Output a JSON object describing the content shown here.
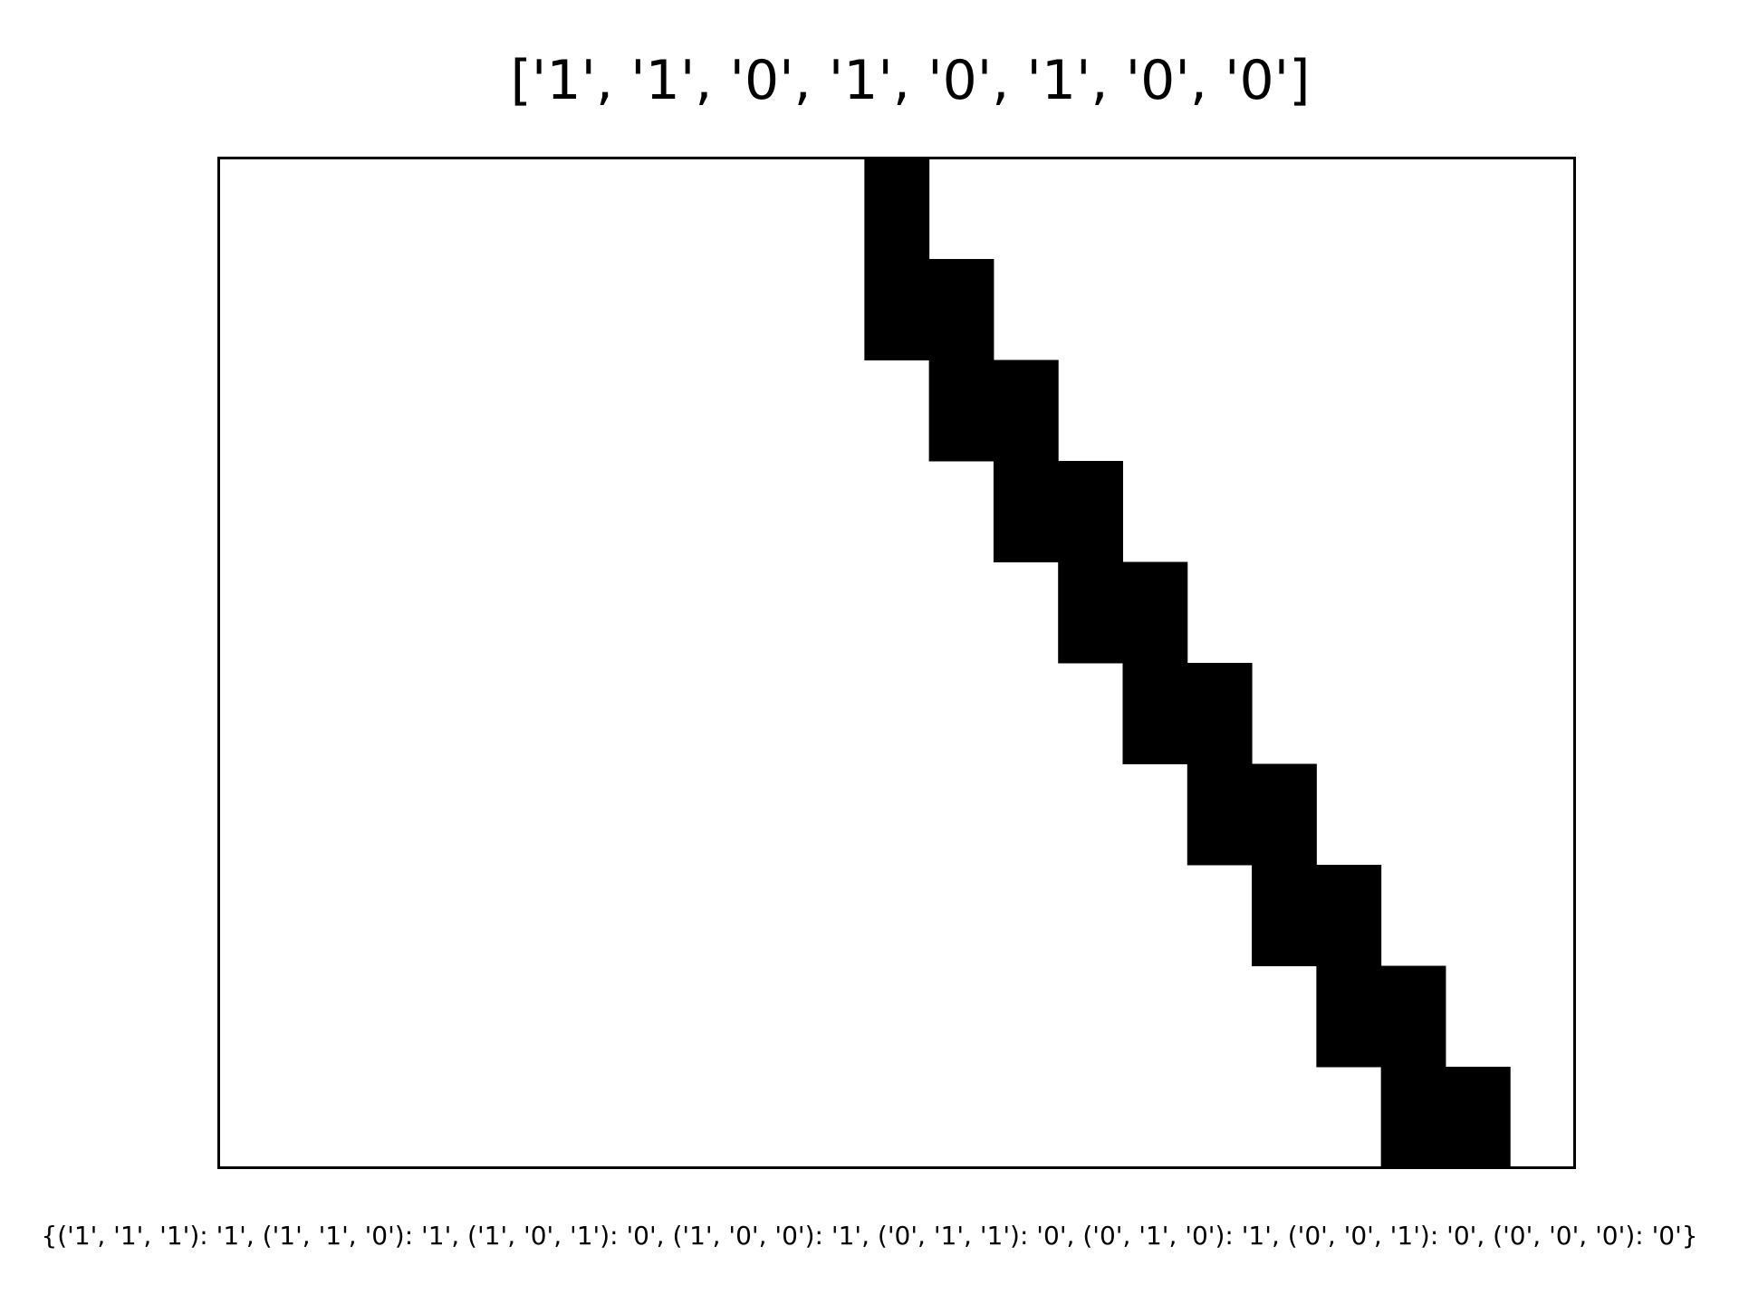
{
  "chart_data": {
    "type": "heatmap",
    "title": "['1', '1', '0', '1', '0', '1', '0', '0']",
    "caption": "{('1', '1', '1'): '1', ('1', '1', '0'): '1', ('1', '0', '1'): '0', ('1', '0', '0'): '1', ('0', '1', '1'): '0', ('0', '1', '0'): '1', ('0', '0', '1'): '0', ('0', '0', '0'): '0'}",
    "grid": false,
    "colors": {
      "on": "#000000",
      "off": "#ffffff"
    },
    "columns": 21,
    "rows": [
      [
        0,
        0,
        0,
        0,
        0,
        0,
        0,
        0,
        0,
        0,
        1,
        0,
        0,
        0,
        0,
        0,
        0,
        0,
        0,
        0,
        0
      ],
      [
        0,
        0,
        0,
        0,
        0,
        0,
        0,
        0,
        0,
        0,
        1,
        1,
        0,
        0,
        0,
        0,
        0,
        0,
        0,
        0,
        0
      ],
      [
        0,
        0,
        0,
        0,
        0,
        0,
        0,
        0,
        0,
        0,
        0,
        1,
        1,
        0,
        0,
        0,
        0,
        0,
        0,
        0,
        0
      ],
      [
        0,
        0,
        0,
        0,
        0,
        0,
        0,
        0,
        0,
        0,
        0,
        0,
        1,
        1,
        0,
        0,
        0,
        0,
        0,
        0,
        0
      ],
      [
        0,
        0,
        0,
        0,
        0,
        0,
        0,
        0,
        0,
        0,
        0,
        0,
        0,
        1,
        1,
        0,
        0,
        0,
        0,
        0,
        0
      ],
      [
        0,
        0,
        0,
        0,
        0,
        0,
        0,
        0,
        0,
        0,
        0,
        0,
        0,
        0,
        1,
        1,
        0,
        0,
        0,
        0,
        0
      ],
      [
        0,
        0,
        0,
        0,
        0,
        0,
        0,
        0,
        0,
        0,
        0,
        0,
        0,
        0,
        0,
        1,
        1,
        0,
        0,
        0,
        0
      ],
      [
        0,
        0,
        0,
        0,
        0,
        0,
        0,
        0,
        0,
        0,
        0,
        0,
        0,
        0,
        0,
        0,
        1,
        1,
        0,
        0,
        0
      ],
      [
        0,
        0,
        0,
        0,
        0,
        0,
        0,
        0,
        0,
        0,
        0,
        0,
        0,
        0,
        0,
        0,
        0,
        1,
        1,
        0,
        0
      ],
      [
        0,
        0,
        0,
        0,
        0,
        0,
        0,
        0,
        0,
        0,
        0,
        0,
        0,
        0,
        0,
        0,
        0,
        0,
        1,
        1,
        0
      ]
    ]
  }
}
